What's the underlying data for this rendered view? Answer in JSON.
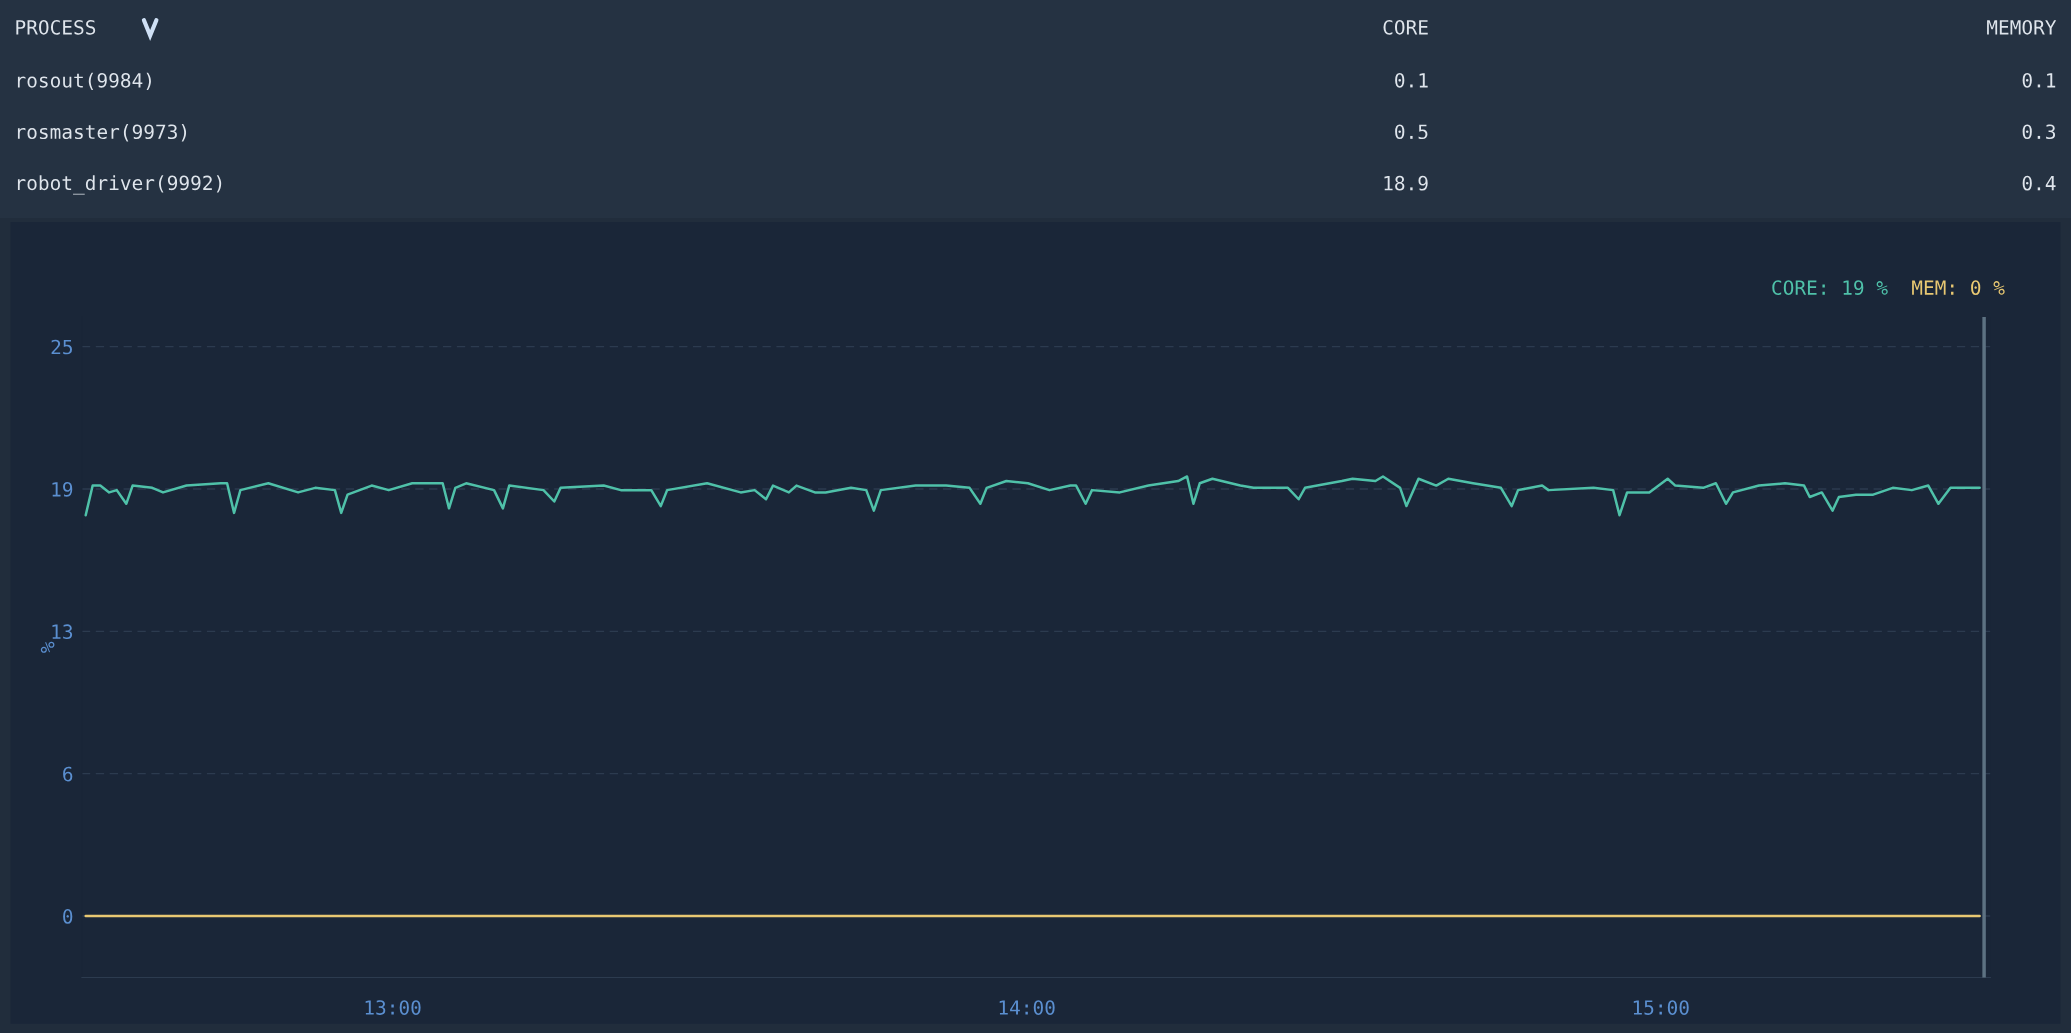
{
  "chart_data": [
    {
      "type": "other",
      "xlabel": "PROCESS",
      "categories": [
        "rosout(9984)",
        "rosmaster(9973)",
        "robot_driver(9992)"
      ],
      "data_labels": true,
      "series": [
        {
          "name": "CORE",
          "values": [
            0.1,
            0.5,
            18.9
          ]
        },
        {
          "name": "MEMORY",
          "values": [
            0.1,
            0.3,
            0.4
          ]
        }
      ]
    },
    {
      "type": "line",
      "ylabel": "%",
      "legend": "top right",
      "grid": "y",
      "xlim": [
        12.51,
        15.52
      ],
      "xticks": [
        {
          "value": 13,
          "label": "13:00"
        },
        {
          "value": 14,
          "label": "14:00"
        },
        {
          "value": 15,
          "label": "15:00"
        }
      ],
      "ylim": [
        -2.7,
        26.3
      ],
      "yticks": [
        0,
        {
          "value": 6.25,
          "label": "6"
        },
        {
          "value": 12.5,
          "label": "13"
        },
        {
          "value": 18.75,
          "label": "19"
        },
        25
      ],
      "ref_lines": [
        {
          "axis": "x",
          "value": 15.51,
          "label": null,
          "color": "#5d7282"
        }
      ],
      "series": [
        {
          "name": "CORE: 19 %",
          "color": "#4fc1a9",
          "x": [
            12.516,
            12.527,
            12.539,
            12.553,
            12.565,
            12.58,
            12.59,
            12.621,
            12.638,
            12.675,
            12.729,
            12.739,
            12.75,
            12.76,
            12.804,
            12.851,
            12.878,
            12.909,
            12.919,
            12.929,
            12.967,
            12.994,
            13.031,
            13.079,
            13.089,
            13.099,
            13.116,
            13.16,
            13.174,
            13.184,
            13.238,
            13.255,
            13.265,
            13.333,
            13.36,
            13.408,
            13.423,
            13.433,
            13.496,
            13.549,
            13.571,
            13.589,
            13.6,
            13.625,
            13.637,
            13.666,
            13.683,
            13.723,
            13.747,
            13.759,
            13.77,
            13.825,
            13.873,
            13.91,
            13.927,
            13.937,
            13.968,
            14.002,
            14.036,
            14.069,
            14.078,
            14.093,
            14.103,
            14.147,
            14.192,
            14.239,
            14.253,
            14.263,
            14.273,
            14.293,
            14.337,
            14.358,
            14.412,
            14.429,
            14.439,
            14.497,
            14.514,
            14.55,
            14.562,
            14.589,
            14.599,
            14.618,
            14.646,
            14.665,
            14.704,
            14.748,
            14.765,
            14.775,
            14.813,
            14.823,
            14.894,
            14.925,
            14.935,
            14.947,
            14.982,
            15.011,
            15.023,
            15.067,
            15.087,
            15.103,
            15.114,
            15.155,
            15.196,
            15.226,
            15.235,
            15.254,
            15.271,
            15.281,
            15.308,
            15.335,
            15.366,
            15.396,
            15.422,
            15.438,
            15.457,
            15.503
          ],
          "values": [
            17.6,
            18.9,
            18.9,
            18.6,
            18.7,
            18.1,
            18.9,
            18.8,
            18.6,
            18.9,
            19.0,
            19.0,
            17.7,
            18.7,
            19.0,
            18.6,
            18.8,
            18.7,
            17.7,
            18.5,
            18.9,
            18.7,
            19.0,
            19.0,
            17.9,
            18.8,
            19.0,
            18.7,
            17.9,
            18.9,
            18.7,
            18.2,
            18.8,
            18.9,
            18.7,
            18.7,
            18.0,
            18.7,
            19.0,
            18.6,
            18.7,
            18.3,
            18.9,
            18.6,
            18.9,
            18.6,
            18.6,
            18.8,
            18.7,
            17.8,
            18.7,
            18.9,
            18.9,
            18.8,
            18.1,
            18.8,
            19.1,
            19.0,
            18.7,
            18.9,
            18.9,
            18.1,
            18.7,
            18.6,
            18.9,
            19.1,
            19.3,
            18.1,
            19.0,
            19.2,
            18.9,
            18.8,
            18.8,
            18.3,
            18.8,
            19.1,
            19.2,
            19.1,
            19.3,
            18.8,
            18.0,
            19.2,
            18.9,
            19.2,
            19.0,
            18.8,
            18.0,
            18.7,
            18.9,
            18.7,
            18.8,
            18.7,
            17.6,
            18.6,
            18.6,
            19.2,
            18.9,
            18.8,
            19.0,
            18.1,
            18.6,
            18.9,
            19.0,
            18.9,
            18.4,
            18.6,
            17.8,
            18.4,
            18.5,
            18.5,
            18.8,
            18.7,
            18.9,
            18.1,
            18.8,
            18.8
          ]
        },
        {
          "name": "MEM: 0 %",
          "color": "#e8c872",
          "x": [
            12.516,
            15.503
          ],
          "values": [
            0,
            0
          ]
        }
      ]
    }
  ]
}
